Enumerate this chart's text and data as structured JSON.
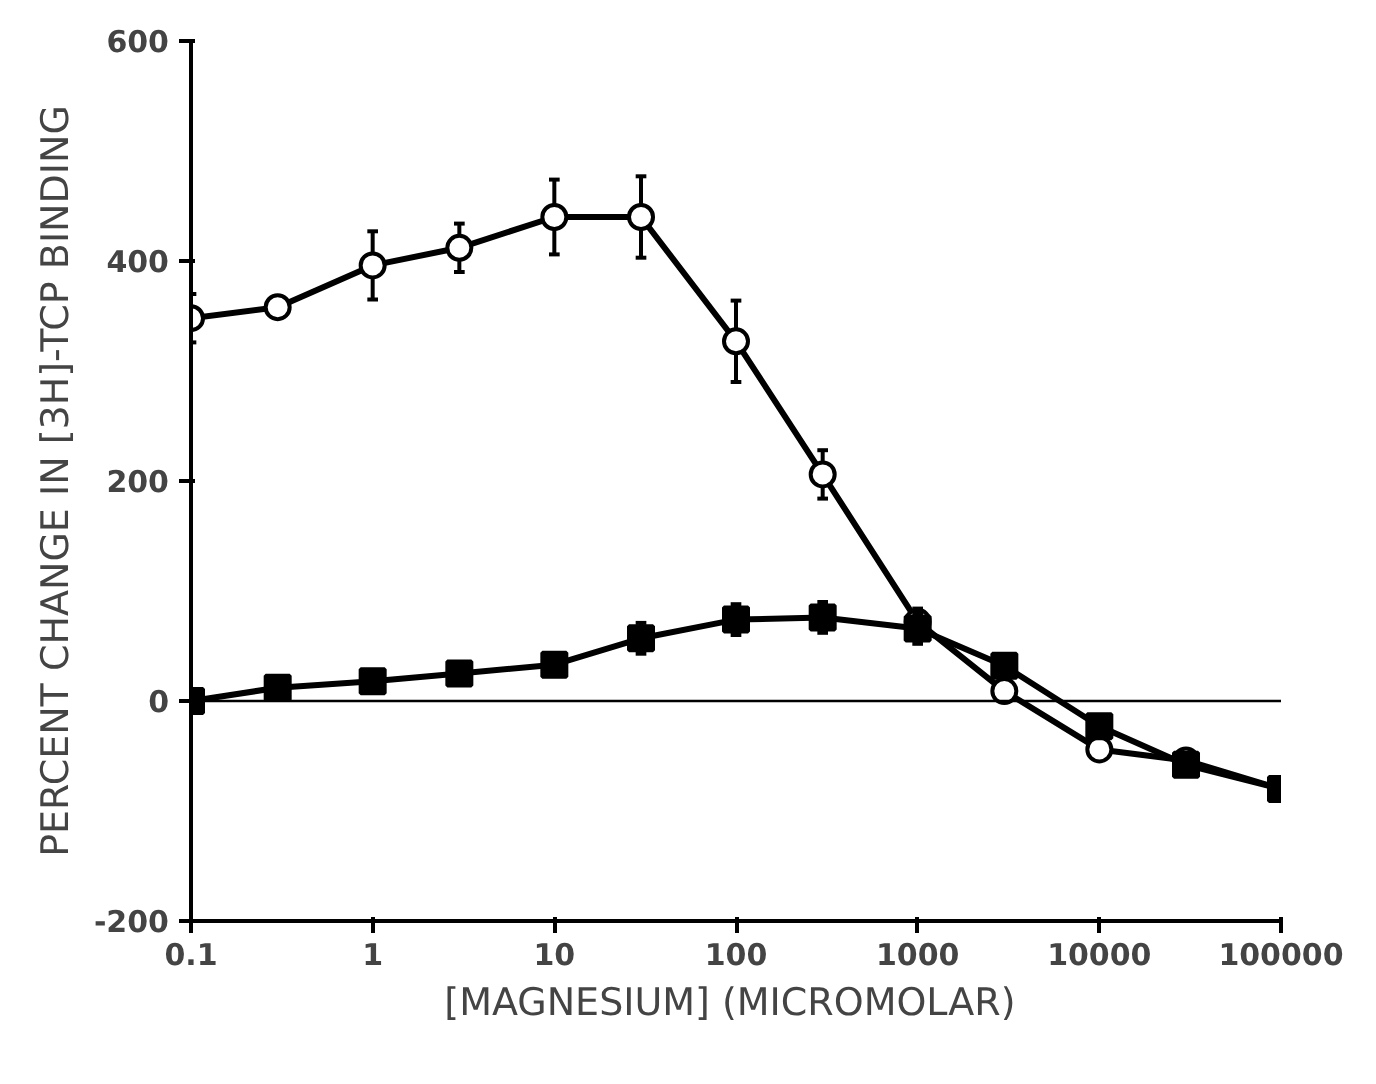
{
  "chart_data": {
    "type": "line",
    "xlabel": "[MAGNESIUM]  (MICROMOLAR)",
    "ylabel": "PERCENT CHANGE IN [3H]-TCP BINDING",
    "log": "x",
    "x": [
      0.1,
      0.3,
      1,
      3,
      10,
      30,
      100,
      300,
      1000,
      3000,
      10000,
      30000,
      100000
    ],
    "xlim": [
      0.1,
      100000
    ],
    "xticks": [
      {
        "value": 0.1,
        "label": "0.1"
      },
      1,
      10,
      100,
      1000,
      10000,
      100000
    ],
    "ylim": [
      -200,
      600
    ],
    "yticks": [
      -200,
      0,
      200,
      400,
      600
    ],
    "grid": false,
    "series": [
      {
        "color": "#000000",
        "marker": "circle",
        "values": [
          348,
          358,
          396,
          412,
          440,
          440,
          327,
          206,
          72,
          9,
          -44,
          -54,
          -80
        ],
        "errors": [
          22,
          null,
          31,
          22,
          34,
          37,
          37,
          22,
          12,
          null,
          null,
          null,
          null
        ]
      },
      {
        "color": "#000000",
        "marker": "square",
        "values": [
          0,
          12,
          18,
          25,
          33,
          57,
          74,
          76,
          66,
          32,
          -23,
          -58,
          -80
        ],
        "errors": [
          null,
          null,
          null,
          null,
          null,
          14,
          14,
          14,
          14,
          null,
          null,
          null,
          null
        ]
      }
    ],
    "ref_lines": [
      {
        "axis": "y",
        "value": 0,
        "color": "#000000",
        "line_style": "solid"
      }
    ]
  }
}
